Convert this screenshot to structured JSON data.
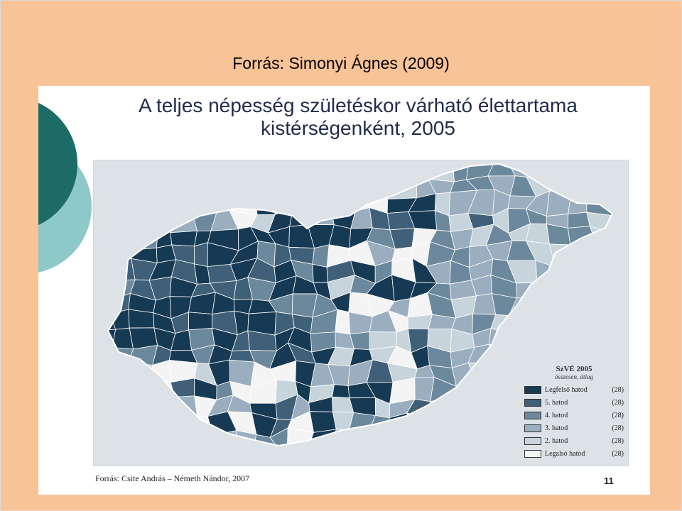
{
  "caption": "Forrás: Simonyi Ágnes (2009)",
  "slide": {
    "title_line1": "A teljes népesség születéskor várható élettartama",
    "title_line2": "kistérségenként, 2005",
    "source": "Forrás: Csite András – Németh Nándor, 2007",
    "page_number": "11"
  },
  "legend": {
    "heading": "SzVÉ 2005",
    "subheading": "összesen, átlag",
    "items": [
      {
        "label": "Legfelső hatod",
        "count": "(28)",
        "color": "#173a54"
      },
      {
        "label": "5. hatod",
        "count": "(28)",
        "color": "#3f6078"
      },
      {
        "label": "4. hatod",
        "count": "(28)",
        "color": "#6c889c"
      },
      {
        "label": "3. hatod",
        "count": "(28)",
        "color": "#9aaec0"
      },
      {
        "label": "2. hatod",
        "count": "(28)",
        "color": "#c8d4dc"
      },
      {
        "label": "Legalsó hatod",
        "count": "(28)",
        "color": "#f4f4f4"
      }
    ]
  },
  "colors": {
    "background": "#f9c398",
    "deco_dark": "#1d6b66",
    "deco_light": "#8ec9c9"
  }
}
